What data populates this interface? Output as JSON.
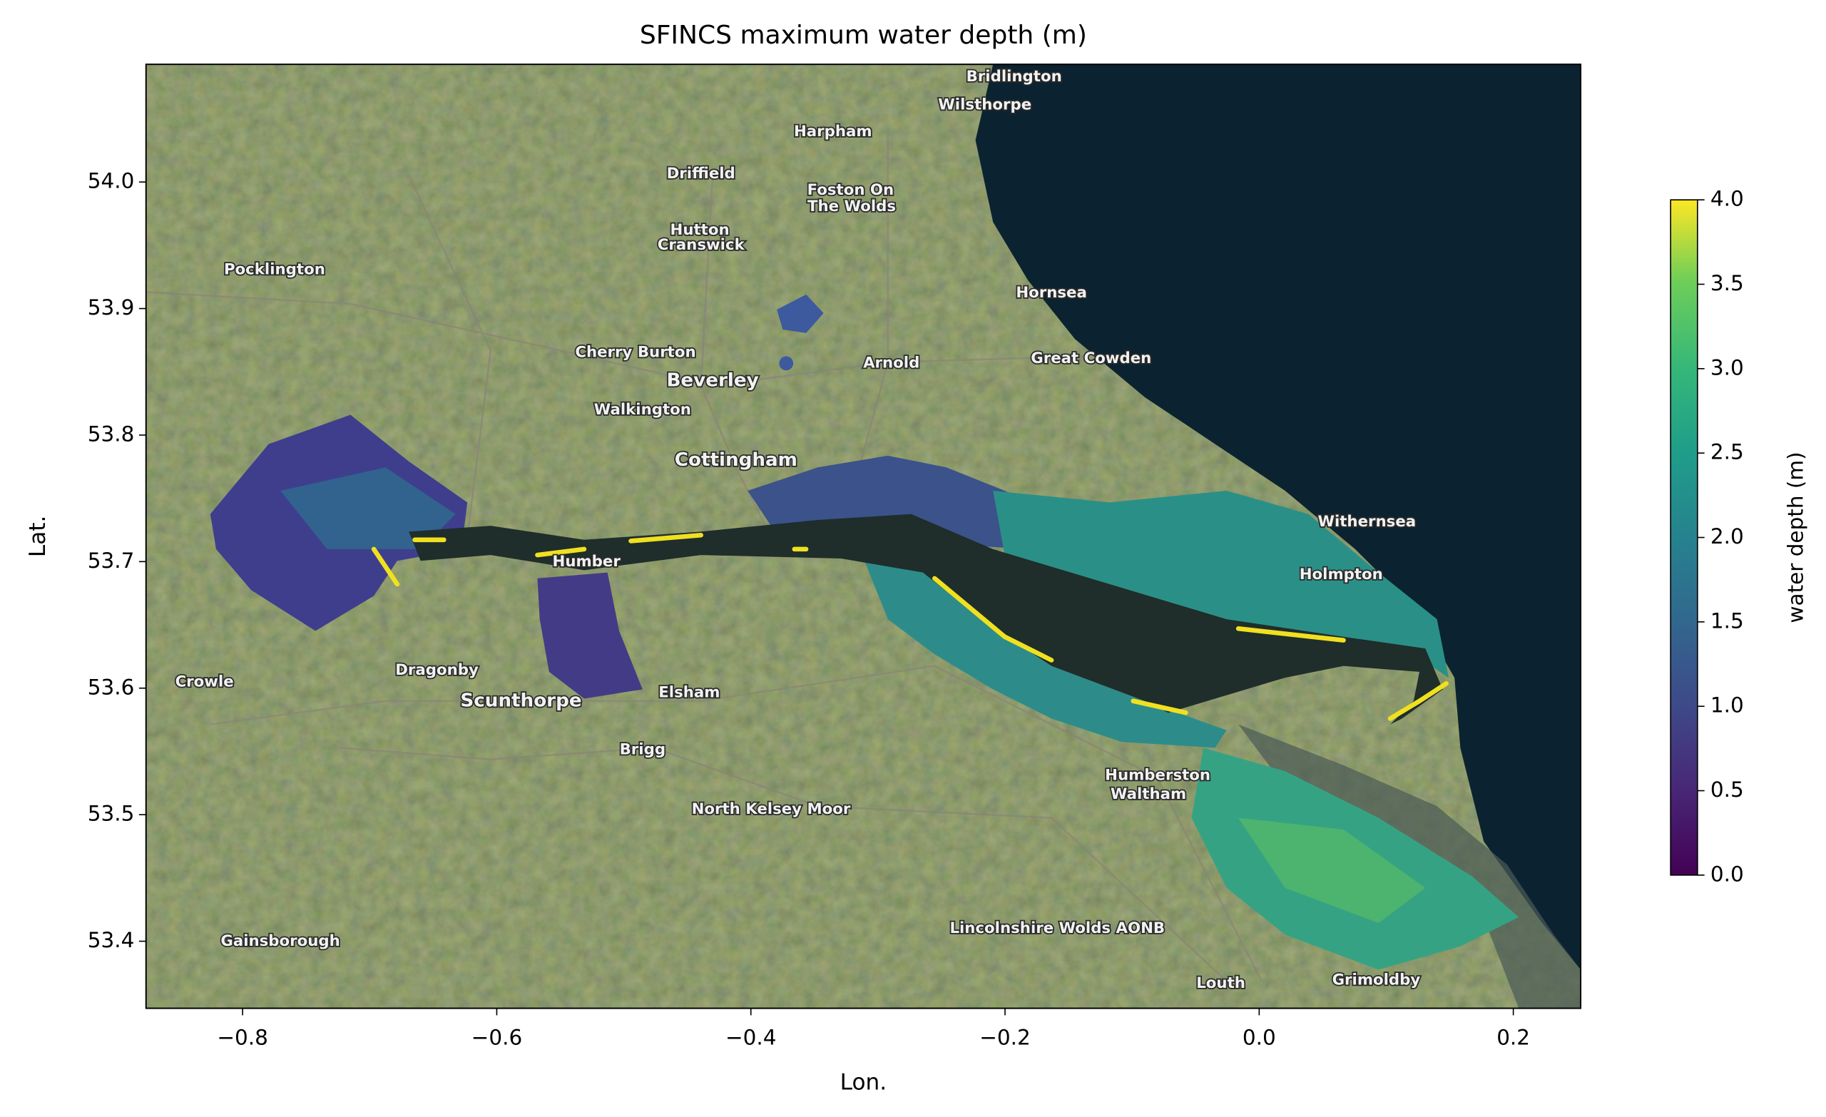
{
  "chart_data": {
    "type": "map",
    "title": "SFINCS maximum water depth (m)",
    "xlabel": "Lon.",
    "ylabel": "Lat.",
    "xlim": [
      -0.876,
      0.253
    ],
    "ylim": [
      53.347,
      54.093
    ],
    "xticks": [
      {
        "value": -0.8,
        "label": "−0.8"
      },
      {
        "value": -0.6,
        "label": "−0.6"
      },
      {
        "value": -0.4,
        "label": "−0.4"
      },
      {
        "value": -0.2,
        "label": "−0.2"
      },
      {
        "value": 0,
        "label": "0.0"
      },
      {
        "value": 0.2,
        "label": "0.2"
      }
    ],
    "yticks": [
      53.4,
      53.5,
      53.6,
      53.7,
      53.8,
      53.9,
      {
        "value": 54,
        "label": "54.0"
      }
    ],
    "colorbar": {
      "label": "water depth (m)",
      "cmap": "viridis",
      "lim": [
        0,
        4
      ],
      "ticks": [
        {
          "value": 0,
          "label": "0.0"
        },
        0.5,
        {
          "value": 1,
          "label": "1.0"
        },
        1.5,
        {
          "value": 2,
          "label": "2.0"
        },
        2.5,
        {
          "value": 3,
          "label": "3.0"
        },
        3.5,
        {
          "value": 4,
          "label": "4.0"
        }
      ]
    },
    "map_labels": [
      "Bridlington",
      "Wilsthorpe",
      "Harpham",
      "Driffield",
      "Foston On",
      "The Wolds",
      "Hutton",
      "Cranswick",
      "Pocklington",
      "Hornsea",
      "Cherry Burton",
      "Arnold",
      "Great Cowden",
      "Beverley",
      "Walkington",
      "Cottingham",
      "Withernsea",
      "Holmpton",
      "Humber",
      "Crowle",
      "Dragonby",
      "Scunthorpe",
      "Elsham",
      "Brigg",
      "Humberston",
      "Waltham",
      "North Kelsey Moor",
      "Lincolnshire Wolds AONB",
      "Gainsborough",
      "Louth",
      "Grimoldby"
    ]
  }
}
